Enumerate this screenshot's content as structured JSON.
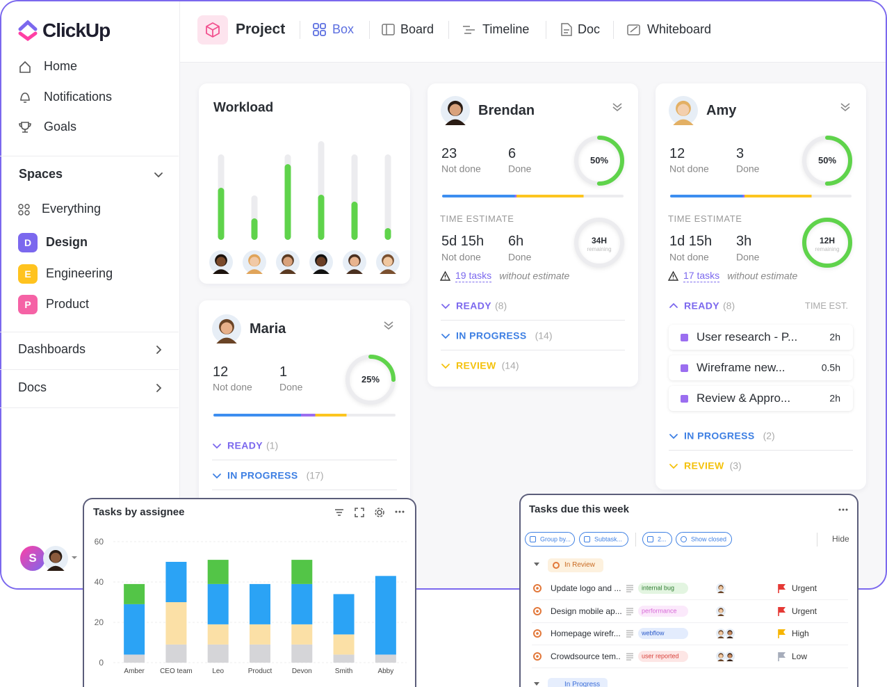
{
  "sidebar": {
    "logo": "ClickUp",
    "nav": [
      "Home",
      "Notifications",
      "Goals"
    ],
    "spaces_title": "Spaces",
    "everything": "Everything",
    "spaces": [
      {
        "badge": "D",
        "name": "Design",
        "color": "#7b68ee"
      },
      {
        "badge": "E",
        "name": "Engineering",
        "color": "#ffc31f"
      },
      {
        "badge": "P",
        "name": "Product",
        "color": "#f562a5"
      }
    ],
    "sections": [
      "Dashboards",
      "Docs"
    ],
    "user_badge": "S"
  },
  "topbar": {
    "project": "Project",
    "views": [
      "Box",
      "Board",
      "Timeline",
      "Doc",
      "Whiteboard"
    ]
  },
  "workload": {
    "title": "Workload",
    "color": "#5fd34b",
    "capacity": [
      123,
      64,
      123,
      142,
      123,
      123
    ],
    "values": [
      75,
      31,
      109,
      65,
      55,
      17
    ]
  },
  "people": [
    {
      "name": "Brendan",
      "not_done": 23,
      "done": 6,
      "not_done_label": "Not done",
      "done_label": "Done",
      "progress": {
        "value": 50,
        "label": "50%"
      },
      "time_title": "TIME ESTIMATE",
      "time_not_done": "5d 15h",
      "time_done": "6h",
      "remaining": "34H",
      "remaining_label": "remaining",
      "warning_link": "19 tasks",
      "warning_text": "without estimate",
      "groups": [
        {
          "name": "READY",
          "count": "(8)",
          "color": "#7b68ee"
        },
        {
          "name": "IN PROGRESS",
          "count": "(14)",
          "color": "#3d7fe3"
        },
        {
          "name": "REVIEW",
          "count": "(14)",
          "color": "#f4c20d"
        }
      ]
    },
    {
      "name": "Amy",
      "not_done": 12,
      "done": 3,
      "not_done_label": "Not done",
      "done_label": "Done",
      "progress": {
        "value": 50,
        "label": "50%"
      },
      "time_title": "TIME ESTIMATE",
      "time_not_done": "1d 15h",
      "time_done": "3h",
      "remaining": "12H",
      "remaining_label": "remaining",
      "warning_link": "17 tasks",
      "warning_text": "without estimate",
      "groups": [
        {
          "name": "READY",
          "count": "(8)",
          "color": "#7b68ee",
          "column": "TIME EST.",
          "tasks": [
            {
              "name": "User research - P...",
              "est": "2h"
            },
            {
              "name": "Wireframe new...",
              "est": "0.5h"
            },
            {
              "name": "Review & Appro...",
              "est": "2h"
            }
          ]
        },
        {
          "name": "IN PROGRESS",
          "count": "(2)",
          "color": "#3d7fe3"
        },
        {
          "name": "REVIEW",
          "count": "(3)",
          "color": "#f4c20d"
        }
      ]
    },
    {
      "name": "Maria",
      "not_done": 12,
      "done": 1,
      "not_done_label": "Not done",
      "done_label": "Done",
      "progress": {
        "value": 25,
        "label": "25%"
      },
      "groups": [
        {
          "name": "READY",
          "count": "(1)",
          "color": "#7b68ee"
        },
        {
          "name": "IN PROGRESS",
          "count": "(17)",
          "color": "#3d7fe3"
        }
      ]
    }
  ],
  "assignee_chart": {
    "chart_data": {
      "type": "bar",
      "stacked": true,
      "title": "Tasks by assignee",
      "categories": [
        "Amber",
        "CEO team",
        "Leo",
        "Product",
        "Devon",
        "Smith",
        "Abby"
      ],
      "series": [
        {
          "color": "#d5d5d8",
          "values": [
            4,
            9,
            9,
            9,
            9,
            4,
            4
          ]
        },
        {
          "color": "#fbe0a6",
          "values": [
            0,
            21,
            10,
            10,
            10,
            10,
            0
          ]
        },
        {
          "color": "#2ba3f5",
          "values": [
            25,
            20,
            20,
            20,
            20,
            20,
            39
          ]
        },
        {
          "color": "#53c547",
          "values": [
            10,
            0,
            12,
            0,
            12,
            0,
            0
          ]
        }
      ],
      "ylim": [
        0,
        60
      ],
      "yticks": [
        0,
        20,
        40,
        60
      ],
      "grid": true
    }
  },
  "due": {
    "title": "Tasks due this week",
    "filters": [
      "Group by...",
      "Subtask...",
      "2...",
      "Show closed"
    ],
    "hide": "Hide",
    "group": "In Review",
    "next_group": "In Progress",
    "tasks": [
      {
        "name": "Update logo and ...",
        "tag": "internal bug",
        "tag_color": "#2f7d32",
        "tag_bg": "#e3f5e1",
        "priority": "Urgent",
        "flag_color": "#e53935"
      },
      {
        "name": "Design mobile ap...",
        "tag": "performance",
        "tag_color": "#d86ad8",
        "tag_bg": "#fbe9fb",
        "priority": "Urgent",
        "flag_color": "#e53935"
      },
      {
        "name": "Homepage wirefr...",
        "tag": "webflow",
        "tag_color": "#2858c8",
        "tag_bg": "#e3ecfd",
        "priority": "High",
        "flag_color": "#f7b500"
      },
      {
        "name": "Crowdsource tem..",
        "tag": "user reported",
        "tag_color": "#d8403a",
        "tag_bg": "#fde6e5",
        "priority": "Low",
        "flag_color": "#a7adbb"
      }
    ]
  }
}
